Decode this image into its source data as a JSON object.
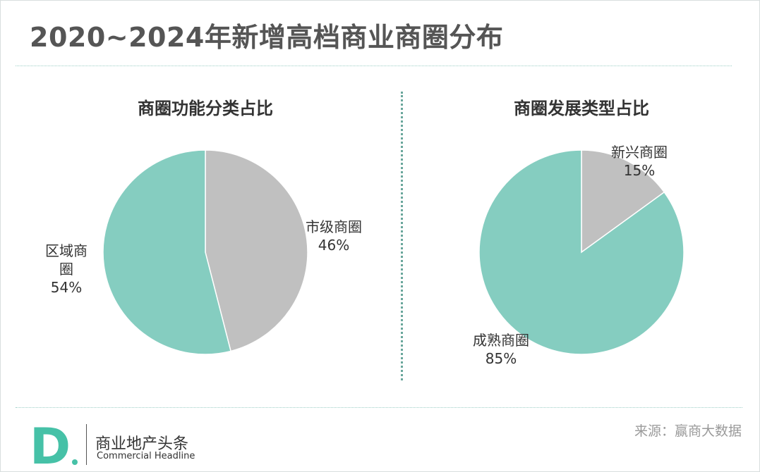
{
  "title": "2020~2024年新增高档商业商圈分布",
  "colors": {
    "teal": "#85cdc0",
    "gray": "#c0c0c0",
    "edge": "#ffffff",
    "accent": "#46c1a7"
  },
  "chart_data": [
    {
      "type": "pie",
      "title": "商圈功能分类占比",
      "slices": [
        {
          "label": "市级商圈",
          "value": 46,
          "value_label": "46%",
          "color": "#c0c0c0"
        },
        {
          "label": "区域商圈",
          "label_lines": [
            "区域商",
            "圈"
          ],
          "value": 54,
          "value_label": "54%",
          "color": "#85cdc0"
        }
      ]
    },
    {
      "type": "pie",
      "title": "商圈发展类型占比",
      "slices": [
        {
          "label": "新兴商圈",
          "value": 15,
          "value_label": "15%",
          "color": "#c0c0c0"
        },
        {
          "label": "成熟商圈",
          "value": 85,
          "value_label": "85%",
          "color": "#85cdc0"
        }
      ]
    }
  ],
  "footer": {
    "logo_letter": "D",
    "brand_name": "商业地产头条",
    "brand_sub": "Commercial Headline",
    "source": "来源：赢商大数据"
  }
}
